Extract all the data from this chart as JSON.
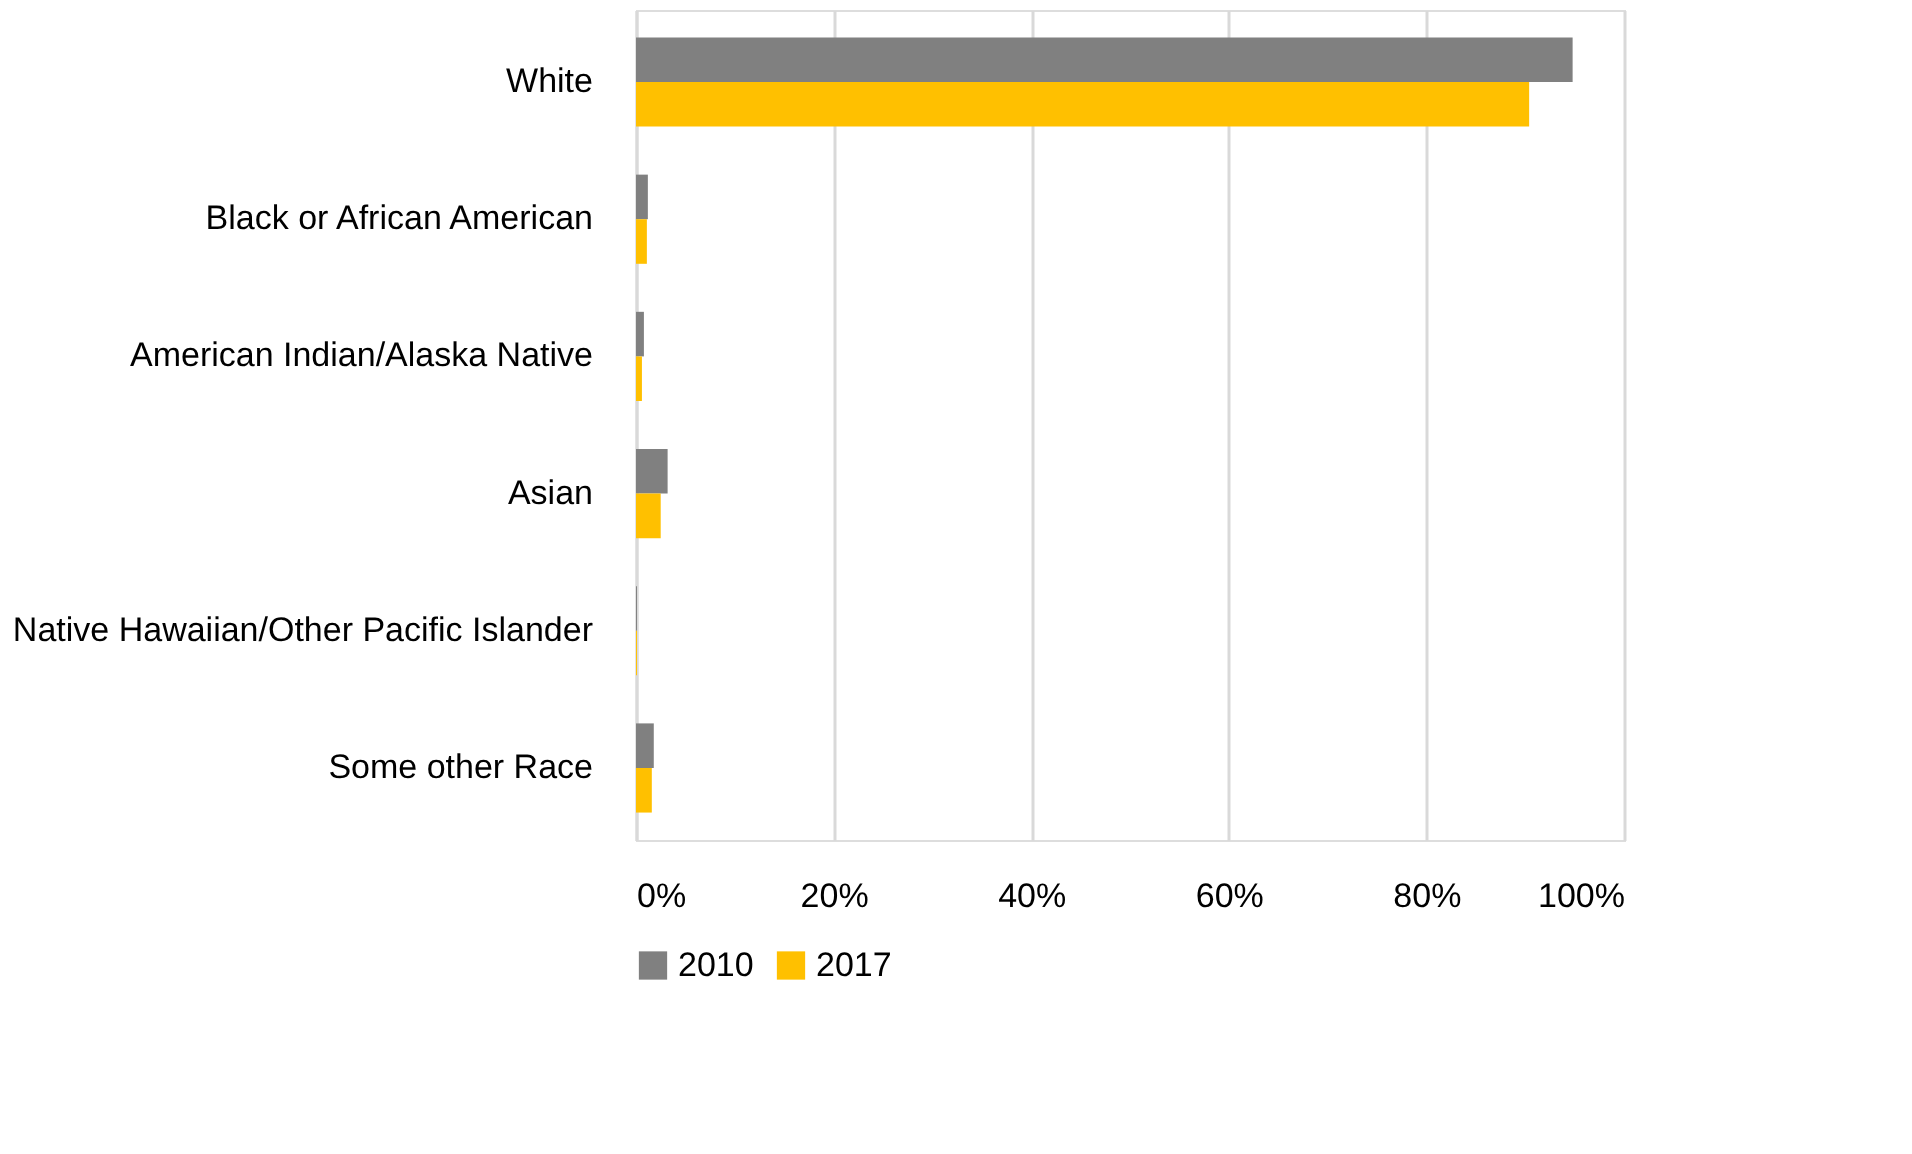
{
  "chart_data": {
    "type": "bar",
    "orientation": "horizontal",
    "categories": [
      "White",
      "Black or African American",
      "American Indian/Alaska Native",
      "Asian",
      "Native Hawaiian/Other Pacific Islander",
      "Some other Race"
    ],
    "series": [
      {
        "name": "2010",
        "color": "#808080",
        "values": [
          94.8,
          1.2,
          0.8,
          3.2,
          0.1,
          1.8
        ]
      },
      {
        "name": "2017",
        "color": "#ffc000",
        "values": [
          90.4,
          1.1,
          0.6,
          2.5,
          0.1,
          1.6
        ]
      }
    ],
    "xlim": [
      0,
      100
    ],
    "xticks": [
      {
        "value": 0,
        "label": "0%"
      },
      {
        "value": 20,
        "label": "20%"
      },
      {
        "value": 40,
        "label": "40%"
      },
      {
        "value": 60,
        "label": "60%"
      },
      {
        "value": 80,
        "label": "80%"
      },
      {
        "value": 100,
        "label": "100%"
      }
    ],
    "grid": "x",
    "legend": "bottom"
  }
}
